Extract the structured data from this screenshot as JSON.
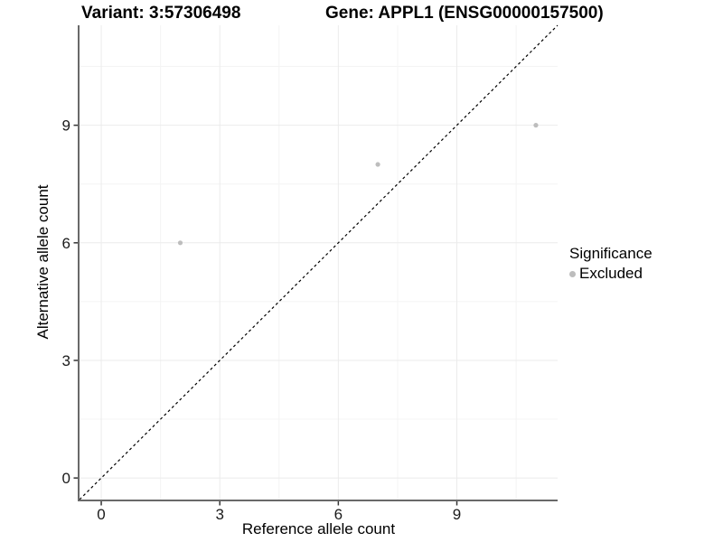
{
  "titles": {
    "variant": "Variant: 3:57306498",
    "gene": "Gene: APPL1 (ENSG00000157500)"
  },
  "axes": {
    "x": {
      "label": "Reference allele count",
      "tick_labels": [
        "0",
        "3",
        "6",
        "9"
      ]
    },
    "y": {
      "label": "Alternative allele count",
      "tick_labels": [
        "0",
        "3",
        "6",
        "9"
      ]
    }
  },
  "legend": {
    "title": "Significance",
    "items": [
      {
        "label": "Excluded",
        "color": "#bdbdbd"
      }
    ]
  },
  "colors": {
    "background": "#ffffff",
    "grid_major": "#ebebeb",
    "grid_minor": "#f4f4f4",
    "axis_line": "#696969",
    "tick_mark": "#333333",
    "tick_text": "#1a1a1a",
    "point": "#bdbdbd",
    "identity_line": "#000000"
  },
  "chart_data": {
    "type": "scatter",
    "title": "Variant: 3:57306498    Gene: APPL1 (ENSG00000157500)",
    "xlabel": "Reference allele count",
    "ylabel": "Alternative allele count",
    "xlim": [
      -0.55,
      11.55
    ],
    "ylim": [
      -0.55,
      11.55
    ],
    "x_ticks": [
      0,
      3,
      6,
      9
    ],
    "y_ticks": [
      0,
      3,
      6,
      9
    ],
    "x_minor_ticks": [
      1.5,
      4.5,
      7.5,
      10.5
    ],
    "y_minor_ticks": [
      1.5,
      4.5,
      7.5,
      10.5
    ],
    "grid": "on",
    "legend_position": "right",
    "series": [
      {
        "name": "Excluded",
        "color": "#bdbdbd",
        "points": [
          [
            2,
            6
          ],
          [
            7,
            8
          ],
          [
            11,
            9
          ]
        ]
      }
    ],
    "reference_line": {
      "kind": "identity",
      "equation": "y = x",
      "style": "dashed",
      "color": "#000000"
    }
  }
}
